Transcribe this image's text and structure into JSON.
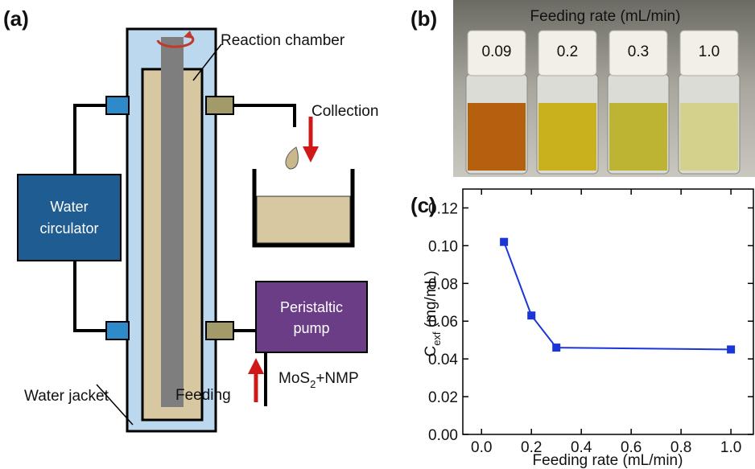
{
  "panel_a": {
    "label": "(a)",
    "reaction_chamber": "Reaction chamber",
    "collection": "Collection",
    "water_circulator": [
      "Water",
      "circulator"
    ],
    "peristaltic_pump": [
      "Peristaltic",
      "pump"
    ],
    "water_jacket": "Water jacket",
    "feeding": "Feeding",
    "feed_material": [
      "MoS",
      "2",
      "+NMP"
    ]
  },
  "panel_b": {
    "label": "(b)",
    "title": "Feeding rate (mL/min)",
    "vials": [
      "0.09",
      "0.2",
      "0.3",
      "1.0"
    ]
  },
  "chart_data": {
    "type": "line",
    "label": "(c)",
    "xlabel": "Feeding rate (mL/min)",
    "ylabel": [
      "C",
      "exf",
      " (mg/mL)"
    ],
    "x": [
      0.09,
      0.2,
      0.3,
      1.0
    ],
    "series": [
      {
        "color": "#1a35d8",
        "values": [
          0.102,
          0.063,
          0.046,
          0.045
        ]
      }
    ],
    "xlim": [
      -0.075,
      1.09
    ],
    "ylim": [
      0,
      0.13
    ],
    "xticks": [
      {
        "value": 0,
        "label": "0.0"
      },
      0.2,
      0.4,
      0.6,
      0.8,
      {
        "value": 1,
        "label": "1.0"
      }
    ],
    "yticks": [
      {
        "value": 0,
        "label": "0.00"
      },
      0.02,
      0.04,
      0.06,
      0.08,
      {
        "value": 0.1,
        "label": "0.10"
      },
      0.12
    ],
    "marker": "square"
  }
}
